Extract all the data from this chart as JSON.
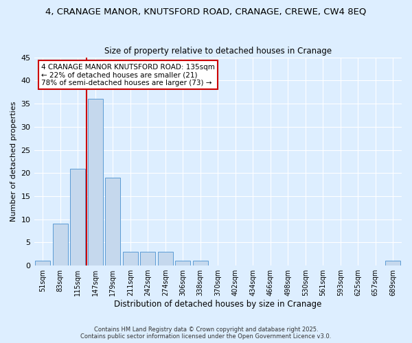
{
  "title1": "4, CRANAGE MANOR, KNUTSFORD ROAD, CRANAGE, CREWE, CW4 8EQ",
  "title2": "Size of property relative to detached houses in Cranage",
  "xlabel": "Distribution of detached houses by size in Cranage",
  "ylabel": "Number of detached properties",
  "categories": [
    "51sqm",
    "83sqm",
    "115sqm",
    "147sqm",
    "179sqm",
    "211sqm",
    "242sqm",
    "274sqm",
    "306sqm",
    "338sqm",
    "370sqm",
    "402sqm",
    "434sqm",
    "466sqm",
    "498sqm",
    "530sqm",
    "561sqm",
    "593sqm",
    "625sqm",
    "657sqm",
    "689sqm"
  ],
  "values": [
    1,
    9,
    21,
    36,
    19,
    3,
    3,
    3,
    1,
    1,
    0,
    0,
    0,
    0,
    0,
    0,
    0,
    0,
    0,
    0,
    1
  ],
  "bar_color": "#c5d8ed",
  "bar_edge_color": "#5b9bd5",
  "annotation_text": "4 CRANAGE MANOR KNUTSFORD ROAD: 135sqm\n← 22% of detached houses are smaller (21)\n78% of semi-detached houses are larger (73) →",
  "annotation_box_color": "#ffffff",
  "annotation_box_edge": "#cc0000",
  "vline_color": "#cc0000",
  "ylim": [
    0,
    45
  ],
  "yticks": [
    0,
    5,
    10,
    15,
    20,
    25,
    30,
    35,
    40,
    45
  ],
  "bg_color": "#ddeeff",
  "grid_color": "#ffffff",
  "footer1": "Contains HM Land Registry data © Crown copyright and database right 2025.",
  "footer2": "Contains public sector information licensed under the Open Government Licence v3.0.",
  "title_fontsize": 9.5,
  "subtitle_fontsize": 8.5
}
